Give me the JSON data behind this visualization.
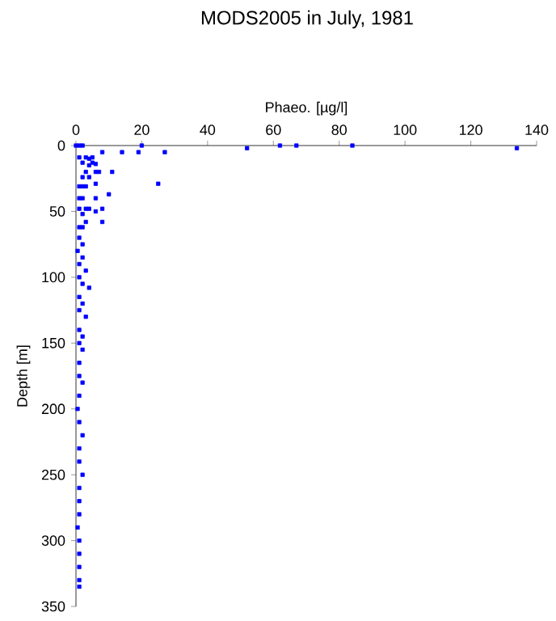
{
  "chart_data": {
    "type": "scatter",
    "title": "MODS2005 in July, 1981",
    "xlabel": "Phaeo. [µg/l]",
    "ylabel": "Depth [m]",
    "xlim": [
      0,
      140
    ],
    "xticks": [
      0,
      20,
      40,
      60,
      80,
      100,
      120,
      140
    ],
    "ylim": [
      350,
      0
    ],
    "yticks": [
      0,
      50,
      100,
      150,
      200,
      250,
      300,
      350
    ],
    "marker": "square",
    "grid": false,
    "series": [
      {
        "color": "#0000ff",
        "x": [
          0,
          1,
          2,
          20,
          52,
          62,
          67,
          84,
          134,
          8,
          14,
          19,
          27,
          1,
          3,
          4,
          5,
          2,
          5,
          6,
          4,
          3,
          6,
          7,
          11,
          4,
          2,
          6,
          25,
          1,
          2,
          3,
          10,
          1,
          2,
          6,
          1,
          3,
          4,
          8,
          6,
          2,
          3,
          8,
          1,
          2,
          1,
          2,
          0.5,
          2,
          1,
          3,
          1,
          2,
          4,
          1,
          2,
          1,
          3,
          1,
          2,
          1,
          2,
          1,
          1,
          2,
          1,
          0.5,
          1,
          2,
          1,
          1,
          2,
          1,
          1,
          1,
          0.5,
          1,
          1,
          1,
          1,
          1
        ],
        "values": [
          0,
          0,
          0,
          0,
          2,
          0,
          0,
          0,
          2,
          5,
          5,
          5,
          5,
          9,
          9,
          10,
          9,
          13,
          13,
          14,
          15,
          20,
          20,
          20,
          20,
          24,
          24,
          29,
          29,
          31,
          31,
          31,
          37,
          40,
          40,
          40,
          48,
          48,
          48,
          48,
          50,
          52,
          58,
          58,
          62,
          62,
          70,
          75,
          80,
          85,
          90,
          95,
          100,
          105,
          108,
          115,
          120,
          125,
          130,
          140,
          145,
          150,
          155,
          165,
          175,
          180,
          190,
          200,
          210,
          220,
          230,
          240,
          250,
          260,
          270,
          280,
          290,
          300,
          310,
          320,
          330,
          335
        ]
      }
    ]
  }
}
